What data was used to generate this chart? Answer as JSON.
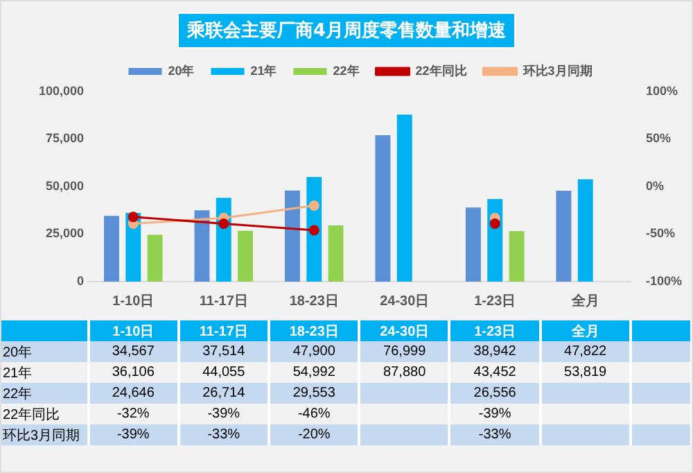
{
  "chart_data": {
    "type": "bar",
    "title": "乘联会主要厂商4月周度零售数量和增速",
    "categories": [
      "1-10日",
      "11-17日",
      "18-23日",
      "24-30日",
      "1-23日",
      "全月"
    ],
    "series": [
      {
        "name": "20年",
        "color": "#5b8fd6",
        "values": [
          34567,
          37514,
          47900,
          76999,
          38942,
          47822
        ],
        "value_labels": [
          "34,567",
          "37,514",
          "47,900",
          "76,999",
          "38,942",
          "47,822"
        ]
      },
      {
        "name": "21年",
        "color": "#00b0f0",
        "values": [
          36106,
          44055,
          54992,
          87880,
          43452,
          53819
        ],
        "value_labels": [
          "36,106",
          "44,055",
          "54,992",
          "87,880",
          "43,452",
          "53,819"
        ]
      },
      {
        "name": "22年",
        "color": "#92d050",
        "values": [
          24646,
          26714,
          29553,
          null,
          26556,
          null
        ],
        "value_labels": [
          "24,646",
          "26,714",
          "29,553",
          null,
          "26,556",
          null
        ]
      },
      {
        "name": "22年同比",
        "type": "line",
        "axis": "y2",
        "color": "#c00000",
        "values": [
          -32,
          -39,
          -46,
          null,
          -39,
          null
        ],
        "value_labels": [
          "-32%",
          "-39%",
          "-46%",
          null,
          "-39%",
          null
        ]
      },
      {
        "name": "环比3月同期",
        "type": "line",
        "axis": "y2",
        "color": "#f4b183",
        "values": [
          -39,
          -33,
          -20,
          null,
          -33,
          null
        ],
        "value_labels": [
          "-39%",
          "-33%",
          "-20%",
          null,
          "-33%",
          null
        ]
      }
    ],
    "ylim": [
      0,
      100000
    ],
    "yticks": [
      0,
      {
        "value": 25000,
        "label": "25,000"
      },
      {
        "value": 50000,
        "label": "50,000"
      },
      {
        "value": 75000,
        "label": "75,000"
      },
      {
        "value": 100000,
        "label": "100,000"
      }
    ],
    "y2lim": [
      -100,
      100
    ],
    "y2ticks": [
      {
        "value": -100,
        "label": "-100%"
      },
      {
        "value": -50,
        "label": "-50%"
      },
      {
        "value": 0,
        "label": "0%"
      },
      {
        "value": 50,
        "label": "50%"
      },
      {
        "value": 100,
        "label": "100%"
      }
    ],
    "grid": false,
    "legend": "top",
    "marker": "circle"
  }
}
